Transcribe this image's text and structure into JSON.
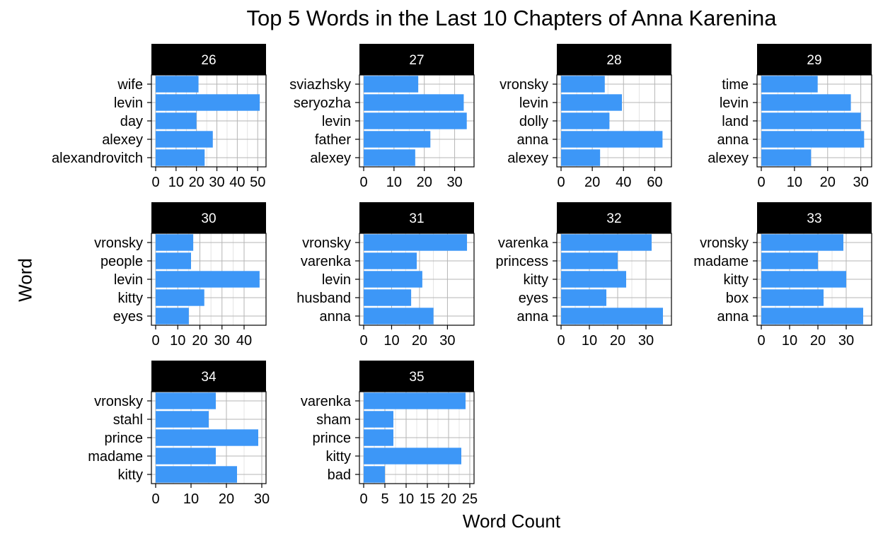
{
  "chart_data": {
    "type": "bar",
    "orientation": "horizontal",
    "title": "Top 5 Words in the Last 10 Chapters of Anna Karenina",
    "xlabel": "Word Count",
    "ylabel": "Word",
    "grid": true,
    "colors": {
      "bar": "#3d97f7",
      "strip": "#000000",
      "strip_text": "#ffffff",
      "grid": "#b5b5b5"
    },
    "panels": [
      {
        "label": "26",
        "words": [
          "wife",
          "levin",
          "day",
          "alexey",
          "alexandrovitch"
        ],
        "values": [
          21,
          51,
          20,
          28,
          24
        ],
        "xlim": [
          0,
          52
        ],
        "ticks": [
          0,
          10,
          20,
          30,
          40,
          50
        ]
      },
      {
        "label": "27",
        "words": [
          "sviazhsky",
          "seryozha",
          "levin",
          "father",
          "alexey"
        ],
        "values": [
          18,
          33,
          34,
          22,
          17
        ],
        "xlim": [
          0,
          35
        ],
        "ticks": [
          0,
          10,
          20,
          30
        ]
      },
      {
        "label": "28",
        "words": [
          "vronsky",
          "levin",
          "dolly",
          "anna",
          "alexey"
        ],
        "values": [
          28,
          39,
          31,
          65,
          25
        ],
        "xlim": [
          0,
          68
        ],
        "ticks": [
          0,
          20,
          40,
          60
        ]
      },
      {
        "label": "29",
        "words": [
          "time",
          "levin",
          "land",
          "anna",
          "alexey"
        ],
        "values": [
          17,
          27,
          30,
          31,
          15
        ],
        "xlim": [
          0,
          32
        ],
        "ticks": [
          0,
          10,
          20,
          30
        ]
      },
      {
        "label": "30",
        "words": [
          "vronsky",
          "people",
          "levin",
          "kitty",
          "eyes"
        ],
        "values": [
          17,
          16,
          47,
          22,
          15
        ],
        "xlim": [
          0,
          48
        ],
        "ticks": [
          0,
          10,
          20,
          30,
          40
        ]
      },
      {
        "label": "31",
        "words": [
          "vronsky",
          "varenka",
          "levin",
          "husband",
          "anna"
        ],
        "values": [
          37,
          19,
          21,
          17,
          25
        ],
        "xlim": [
          0,
          38
        ],
        "ticks": [
          0,
          10,
          20,
          30
        ]
      },
      {
        "label": "32",
        "words": [
          "varenka",
          "princess",
          "kitty",
          "eyes",
          "anna"
        ],
        "values": [
          32,
          20,
          23,
          16,
          36
        ],
        "xlim": [
          0,
          37.5
        ],
        "ticks": [
          0,
          10,
          20,
          30
        ]
      },
      {
        "label": "33",
        "words": [
          "vronsky",
          "madame",
          "kitty",
          "box",
          "anna"
        ],
        "values": [
          29,
          20,
          30,
          22,
          36
        ],
        "xlim": [
          0,
          37.5
        ],
        "ticks": [
          0,
          10,
          20,
          30
        ]
      },
      {
        "label": "34",
        "words": [
          "vronsky",
          "stahl",
          "prince",
          "madame",
          "kitty"
        ],
        "values": [
          17,
          15,
          29,
          17,
          23
        ],
        "xlim": [
          0,
          30
        ],
        "ticks": [
          0,
          10,
          20,
          30
        ]
      },
      {
        "label": "35",
        "words": [
          "varenka",
          "sham",
          "prince",
          "kitty",
          "bad"
        ],
        "values": [
          24,
          7,
          7,
          23,
          5
        ],
        "xlim": [
          0,
          25
        ],
        "ticks": [
          0,
          5,
          10,
          15,
          20,
          25
        ]
      }
    ]
  }
}
